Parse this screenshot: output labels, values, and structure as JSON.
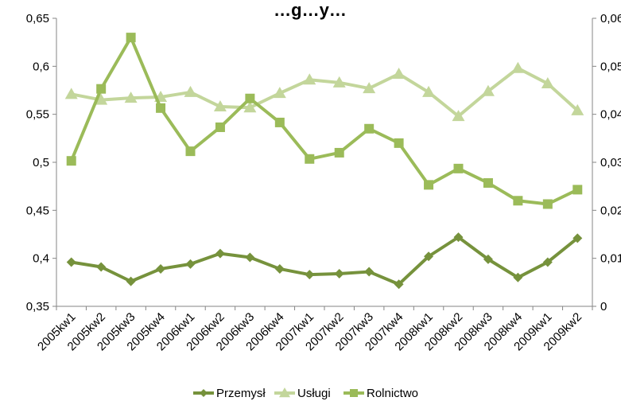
{
  "chart_data": {
    "type": "line",
    "title": "…g…y…",
    "categories": [
      "2005kw1",
      "2005kw2",
      "2005kw3",
      "2005kw4",
      "2006kw1",
      "2006kw2",
      "2006kw3",
      "2006kw4",
      "2007kw1",
      "2007kw2",
      "2007kw3",
      "2007kw4",
      "2008kw1",
      "2008kw2",
      "2008kw3",
      "2008kw4",
      "2009kw1",
      "2009kw2"
    ],
    "left_axis": {
      "ylim": [
        0.35,
        0.65
      ],
      "ticks": [
        "0,35",
        "0,4",
        "0,45",
        "0,5",
        "0,55",
        "0,6",
        "0,65"
      ],
      "tick_values": [
        0.35,
        0.4,
        0.45,
        0.5,
        0.55,
        0.6,
        0.65
      ]
    },
    "right_axis": {
      "ylim": [
        0,
        0.06
      ],
      "ticks": [
        "0",
        "0,01",
        "0,02",
        "0,03",
        "0,04",
        "0,05",
        "0,06"
      ],
      "tick_values": [
        0,
        0.01,
        0.02,
        0.03,
        0.04,
        0.05,
        0.06
      ]
    },
    "grid": false,
    "legend_position": "bottom",
    "series": [
      {
        "name": "Przemysł",
        "axis": "left",
        "marker": "diamond",
        "color": "#76923c",
        "values": [
          0.396,
          0.391,
          0.376,
          0.389,
          0.394,
          0.405,
          0.401,
          0.389,
          0.383,
          0.384,
          0.386,
          0.373,
          0.402,
          0.422,
          0.399,
          0.38,
          0.396,
          0.421
        ]
      },
      {
        "name": "Usługi",
        "axis": "left",
        "marker": "triangle",
        "color": "#c3d69b",
        "values": [
          0.571,
          0.565,
          0.567,
          0.568,
          0.573,
          0.558,
          0.557,
          0.572,
          0.586,
          0.583,
          0.577,
          0.592,
          0.573,
          0.548,
          0.574,
          0.598,
          0.582,
          0.554
        ]
      },
      {
        "name": "Rolnictwo",
        "axis": "right",
        "marker": "square",
        "color": "#9bbb59",
        "values": [
          0.0303,
          0.0453,
          0.056,
          0.0413,
          0.0323,
          0.0373,
          0.0433,
          0.0383,
          0.0307,
          0.032,
          0.037,
          0.034,
          0.0253,
          0.0287,
          0.0257,
          0.022,
          0.0213,
          0.0243
        ]
      }
    ]
  }
}
